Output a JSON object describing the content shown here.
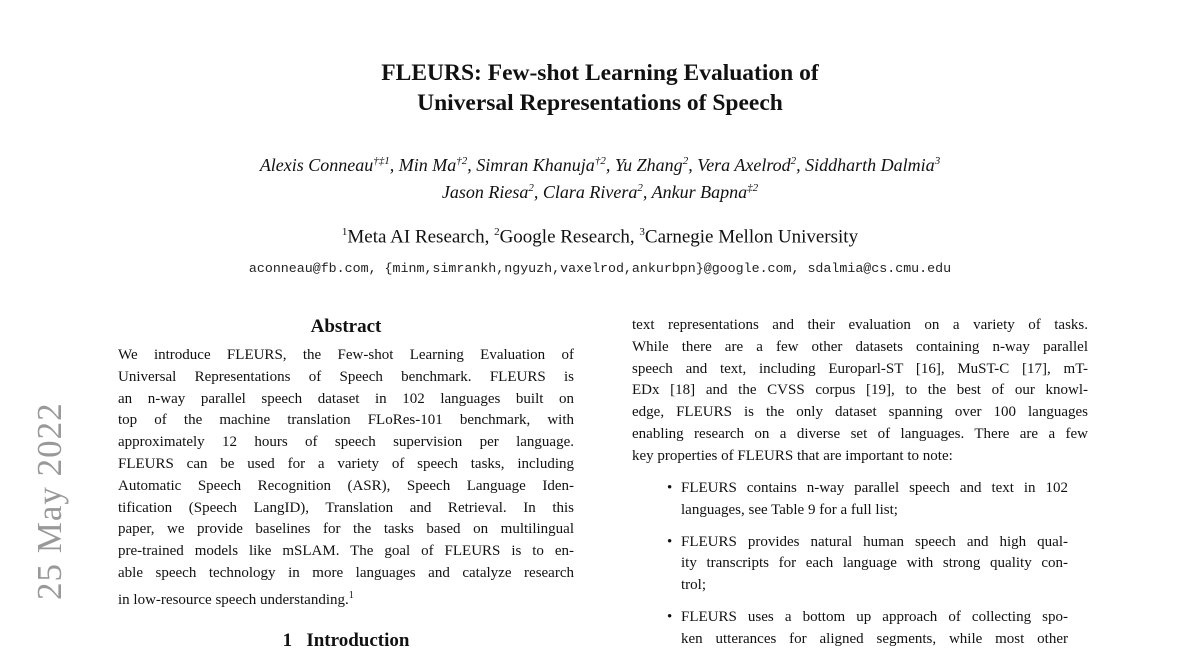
{
  "title": [
    "FLEURS: Few-shot Learning Evaluation of",
    "Universal Representations of Speech"
  ],
  "authors_line1": [
    {
      "name": "Alexis Conneau",
      "sup": "†‡1"
    },
    {
      "name": "Min Ma",
      "sup": "†2"
    },
    {
      "name": "Simran Khanuja",
      "sup": "†2"
    },
    {
      "name": "Yu Zhang",
      "sup": "2"
    },
    {
      "name": "Vera Axelrod",
      "sup": "2"
    },
    {
      "name": "Siddharth Dalmia",
      "sup": "3"
    }
  ],
  "authors_line2": [
    {
      "name": "Jason Riesa",
      "sup": "2"
    },
    {
      "name": "Clara Rivera",
      "sup": "2"
    },
    {
      "name": "Ankur Bapna",
      "sup": "‡2"
    }
  ],
  "affiliations": [
    {
      "sup": "1",
      "name": "Meta AI Research"
    },
    {
      "sup": "2",
      "name": "Google Research"
    },
    {
      "sup": "3",
      "name": "Carnegie Mellon University"
    }
  ],
  "emails": "aconneau@fb.com, {minm,simrankh,ngyuzh,vaxelrod,ankurbpn}@google.com, sdalmia@cs.cmu.edu",
  "arxiv_stamp": "25 May 2022",
  "abstract": {
    "heading": "Abstract",
    "lines": [
      "We introduce FLEURS, the Few-shot Learning Evaluation of",
      "Universal Representations of Speech benchmark. FLEURS is",
      "an n-way parallel speech dataset in 102 languages built on",
      "top of the machine translation FLoRes-101 benchmark, with",
      "approximately 12 hours of speech supervision per language.",
      "FLEURS can be used for a variety of speech tasks, including",
      "Automatic Speech Recognition (ASR), Speech Language Iden-",
      "tification (Speech LangID), Translation and Retrieval. In this",
      "paper, we provide baselines for the tasks based on multilingual",
      "pre-trained models like mSLAM. The goal of FLEURS is to en-",
      "able speech technology in more languages and catalyze research",
      "in low-resource speech understanding."
    ],
    "footnote_mark": "1"
  },
  "intro_heading": {
    "number": "1",
    "text": "Introduction"
  },
  "right_col": {
    "lines": [
      "text representations and their evaluation on a variety of tasks.",
      "While there are a few other datasets containing n-way parallel",
      "speech and text, including Europarl-ST [16], MuST-C [17], mT-",
      "EDx [18] and the CVSS corpus [19], to the best of our knowl-",
      "edge, FLEURS is the only dataset spanning over 100 languages",
      "enabling research on a diverse set of languages. There are a few",
      "key properties of FLEURS that are important to note:"
    ],
    "bullets": [
      [
        "FLEURS contains n-way parallel speech and text in 102",
        "languages, see Table 9 for a full list;"
      ],
      [
        "FLEURS provides natural human speech and high qual-",
        "ity transcripts for each language with strong quality con-",
        "trol;"
      ],
      [
        "FLEURS uses a bottom up approach of collecting spo-",
        "ken utterances for aligned segments, while most other"
      ]
    ]
  }
}
